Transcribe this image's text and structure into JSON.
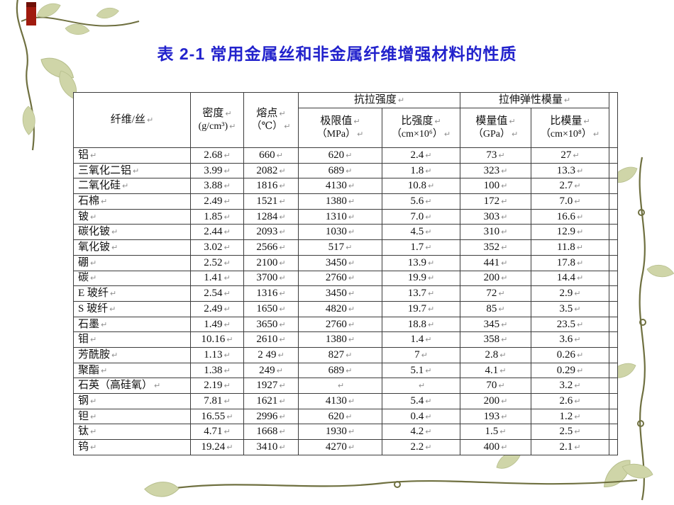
{
  "slide": {
    "title": "表 2-1  常用金属丝和非金属纤维增强材料的性质",
    "title_color": "#2222cc",
    "background_color": "#ffffff"
  },
  "marks": {
    "return_mark": "↵",
    "return_mark_color": "#8f8f8f"
  },
  "decoration": {
    "vine_color": "#6f7040",
    "leaf_color": "#cfd5a8",
    "leaf_edge_color": "#b7bf8d",
    "ribbon_color": "#a01a0e",
    "ribbon_dark_color": "#6e0f06"
  },
  "table": {
    "border_color": "#3c3c3c",
    "header": {
      "fiber": "纤维/丝",
      "density_line1": "密度",
      "density_line2": "(g/cm³)",
      "melting_line1": "熔点",
      "melting_line2": "（℃）",
      "tensile_group": "抗拉强度",
      "tensile_ultimate_line1": "极限值",
      "tensile_ultimate_line2": "（MPa）",
      "specific_strength_line1": "比强度",
      "specific_strength_line2": "（cm×10⁶）",
      "modulus_group": "拉伸弹性模量",
      "modulus_value_line1": "模量值",
      "modulus_value_line2": "（GPa）",
      "specific_modulus_line1": "比模量",
      "specific_modulus_line2": "（cm×10⁸）"
    },
    "rows": [
      [
        "铝",
        "2.68",
        "660",
        "620",
        "2.4",
        "73",
        "27"
      ],
      [
        "三氧化二铝",
        "3.99",
        "2082",
        "689",
        "1.8",
        "323",
        "13.3"
      ],
      [
        "二氧化硅",
        "3.88",
        "1816",
        "4130",
        "10.8",
        "100",
        "2.7"
      ],
      [
        "石棉",
        "2.49",
        "1521",
        "1380",
        "5.6",
        "172",
        "7.0"
      ],
      [
        "铍",
        "1.85",
        "1284",
        "1310",
        "7.0",
        "303",
        "16.6"
      ],
      [
        "碳化铍",
        "2.44",
        "2093",
        "1030",
        "4.5",
        "310",
        "12.9"
      ],
      [
        "氧化铍",
        "3.02",
        "2566",
        "517",
        "1.7",
        "352",
        "11.8"
      ],
      [
        "硼",
        "2.52",
        "2100",
        "3450",
        "13.9",
        "441",
        "17.8"
      ],
      [
        "碳",
        "1.41",
        "3700",
        "2760",
        "19.9",
        "200",
        "14.4"
      ],
      [
        "E 玻纤",
        "2.54",
        "1316",
        "3450",
        "13.7",
        "72",
        "2.9"
      ],
      [
        "S 玻纤",
        "2.49",
        "1650",
        "4820",
        "19.7",
        "85",
        "3.5"
      ],
      [
        "石墨",
        "1.49",
        "3650",
        "2760",
        "18.8",
        "345",
        "23.5"
      ],
      [
        "钼",
        "10.16",
        "2610",
        "1380",
        "1.4",
        "358",
        "3.6"
      ],
      [
        "芳酰胺",
        "1.13",
        "2 49",
        "827",
        "7",
        "2.8",
        "0.26"
      ],
      [
        "聚酯",
        "1.38",
        "249",
        "689",
        "5.1",
        "4.1",
        "0.29"
      ],
      [
        "石英（高硅氧）",
        "2.19",
        "1927",
        "",
        "",
        "70",
        "3.2"
      ],
      [
        "钢",
        "7.81",
        "1621",
        "4130",
        "5.4",
        "200",
        "2.6"
      ],
      [
        "钽",
        "16.55",
        "2996",
        "620",
        "0.4",
        "193",
        "1.2"
      ],
      [
        "钛",
        "4.71",
        "1668",
        "1930",
        "4.2",
        "1.5",
        "2.5"
      ],
      [
        "钨",
        "19.24",
        "3410",
        "4270",
        "2.2",
        "400",
        "2.1"
      ]
    ]
  }
}
